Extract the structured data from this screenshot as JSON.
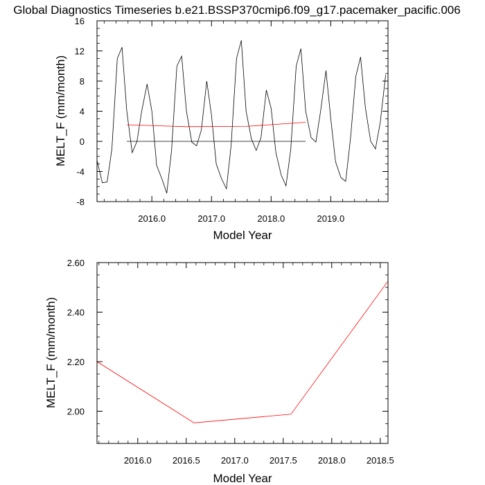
{
  "title": "Global Diagnostics Timeseries b.e21.BSSP370cmip6.f09_g17.pacemaker_pacific.006",
  "chart_data": [
    {
      "type": "line",
      "xlabel": "Model Year",
      "ylabel": "MELT_F (mm/month)",
      "xlim": [
        2015.08,
        2019.96
      ],
      "ylim": [
        -8,
        16
      ],
      "xticks": [
        2016.0,
        2017.0,
        2018.0,
        2019.0
      ],
      "xtick_labels": [
        "2016.0",
        "2017.0",
        "2018.0",
        "2019.0"
      ],
      "yticks": [
        -8,
        -4,
        0,
        4,
        8,
        12,
        16
      ],
      "ytick_labels": [
        "-8",
        "-4",
        "0",
        "4",
        "8",
        "12",
        "16"
      ],
      "grid": false,
      "series": [
        {
          "color": "#000000",
          "x": [
            2015.08,
            2015.17,
            2015.25,
            2015.33,
            2015.42,
            2015.5,
            2015.58,
            2015.67,
            2015.75,
            2015.83,
            2015.92,
            2016.0,
            2016.08,
            2016.17,
            2016.25,
            2016.33,
            2016.42,
            2016.5,
            2016.58,
            2016.67,
            2016.75,
            2016.83,
            2016.92,
            2017.0,
            2017.08,
            2017.17,
            2017.25,
            2017.33,
            2017.42,
            2017.5,
            2017.58,
            2017.67,
            2017.75,
            2017.83,
            2017.92,
            2018.0,
            2018.08,
            2018.17,
            2018.25,
            2018.33,
            2018.42,
            2018.5,
            2018.58,
            2018.67,
            2018.75,
            2018.83,
            2018.92,
            2019.0,
            2019.08,
            2019.17,
            2019.25,
            2019.33,
            2019.42,
            2019.5,
            2019.58,
            2019.67,
            2019.75,
            2019.83,
            2019.92
          ],
          "y": [
            -2.5,
            -5.5,
            -5.4,
            -1.0,
            11.0,
            12.5,
            4.0,
            -1.5,
            0.0,
            4.0,
            7.6,
            4.0,
            -3.2,
            -5.0,
            -6.9,
            -1.2,
            10.0,
            11.3,
            4.0,
            -0.1,
            -0.6,
            1.5,
            8.0,
            3.5,
            -3.0,
            -5.0,
            -6.3,
            -0.5,
            11.0,
            13.4,
            4.0,
            0.3,
            -1.2,
            0.5,
            6.8,
            4.4,
            -1.5,
            -4.5,
            -5.9,
            -1.0,
            10.0,
            12.3,
            4.0,
            0.5,
            -0.1,
            4.0,
            9.4,
            3.0,
            -2.7,
            -4.8,
            -5.3,
            0.3,
            8.6,
            11.2,
            4.5,
            0.0,
            -1.0,
            2.5,
            8.8
          ]
        },
        {
          "color": "#ff0000",
          "x": [
            2015.58,
            2016.58,
            2017.58,
            2018.58
          ],
          "y": [
            2.2,
            1.95,
            1.99,
            2.53
          ]
        },
        {
          "color": "#000000",
          "x": [
            2015.58,
            2018.58
          ],
          "y": [
            0,
            0
          ]
        }
      ]
    },
    {
      "type": "line",
      "xlabel": "Model Year",
      "ylabel": "MELT_F (mm/month)",
      "xlim": [
        2015.58,
        2018.58
      ],
      "ylim": [
        1.87,
        2.6
      ],
      "xticks": [
        2016.0,
        2016.5,
        2017.0,
        2017.5,
        2018.0,
        2018.5
      ],
      "xtick_labels": [
        "2016.0",
        "2016.5",
        "2017.0",
        "2017.5",
        "2018.0",
        "2018.5"
      ],
      "yticks": [
        2.0,
        2.2,
        2.4,
        2.6
      ],
      "ytick_labels": [
        "2.00",
        "2.20",
        "2.40",
        "2.60"
      ],
      "grid": false,
      "series": [
        {
          "color": "#ff0000",
          "x": [
            2015.58,
            2016.58,
            2017.58,
            2018.58
          ],
          "y": [
            2.2,
            1.953,
            1.988,
            2.525
          ]
        }
      ]
    }
  ]
}
